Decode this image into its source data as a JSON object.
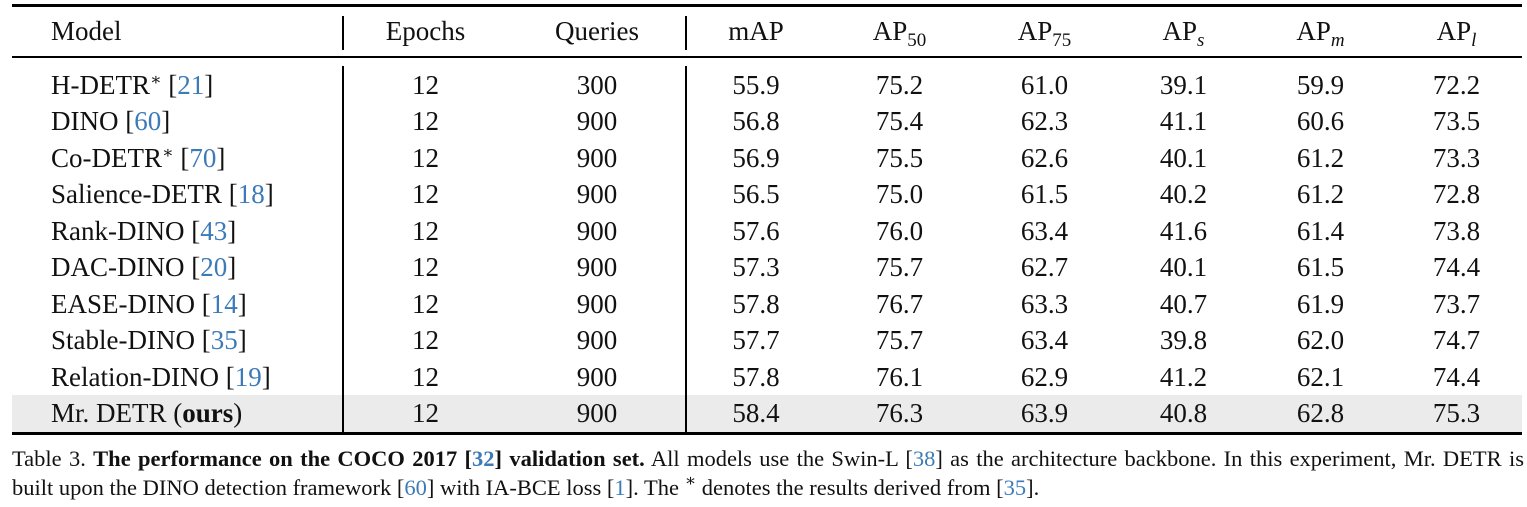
{
  "table": {
    "headers": {
      "model": "Model",
      "epochs": "Epochs",
      "queries": "Queries",
      "map": "mAP",
      "ap50": {
        "base": "AP",
        "sub": "50"
      },
      "ap75": {
        "base": "AP",
        "sub": "75"
      },
      "aps": {
        "base": "AP",
        "sub": "s"
      },
      "apm": {
        "base": "AP",
        "sub": "m"
      },
      "apl": {
        "base": "AP",
        "sub": "l"
      }
    },
    "rows": [
      {
        "name": "H-DETR",
        "star": "∗",
        "ref": "21",
        "epochs": "12",
        "queries": "300",
        "map": "55.9",
        "ap50": "75.2",
        "ap75": "61.0",
        "aps": "39.1",
        "apm": "59.9",
        "apl": "72.2"
      },
      {
        "name": "DINO",
        "star": "",
        "ref": "60",
        "epochs": "12",
        "queries": "900",
        "map": "56.8",
        "ap50": "75.4",
        "ap75": "62.3",
        "aps": "41.1",
        "apm": "60.6",
        "apl": "73.5"
      },
      {
        "name": "Co-DETR",
        "star": "∗",
        "ref": "70",
        "epochs": "12",
        "queries": "900",
        "map": "56.9",
        "ap50": "75.5",
        "ap75": "62.6",
        "aps": "40.1",
        "apm": "61.2",
        "apl": "73.3"
      },
      {
        "name": "Salience-DETR",
        "star": "",
        "ref": "18",
        "epochs": "12",
        "queries": "900",
        "map": "56.5",
        "ap50": "75.0",
        "ap75": "61.5",
        "aps": "40.2",
        "apm": "61.2",
        "apl": "72.8"
      },
      {
        "name": "Rank-DINO",
        "star": "",
        "ref": "43",
        "epochs": "12",
        "queries": "900",
        "map": "57.6",
        "ap50": "76.0",
        "ap75": "63.4",
        "aps": "41.6",
        "apm": "61.4",
        "apl": "73.8"
      },
      {
        "name": "DAC-DINO",
        "star": "",
        "ref": "20",
        "epochs": "12",
        "queries": "900",
        "map": "57.3",
        "ap50": "75.7",
        "ap75": "62.7",
        "aps": "40.1",
        "apm": "61.5",
        "apl": "74.4"
      },
      {
        "name": "EASE-DINO",
        "star": "",
        "ref": "14",
        "epochs": "12",
        "queries": "900",
        "map": "57.8",
        "ap50": "76.7",
        "ap75": "63.3",
        "aps": "40.7",
        "apm": "61.9",
        "apl": "73.7"
      },
      {
        "name": "Stable-DINO",
        "star": "",
        "ref": "35",
        "epochs": "12",
        "queries": "900",
        "map": "57.7",
        "ap50": "75.7",
        "ap75": "63.4",
        "aps": "39.8",
        "apm": "62.0",
        "apl": "74.7"
      },
      {
        "name": "Relation-DINO",
        "star": "",
        "ref": "19",
        "epochs": "12",
        "queries": "900",
        "map": "57.8",
        "ap50": "76.1",
        "ap75": "62.9",
        "aps": "41.2",
        "apm": "62.1",
        "apl": "74.4"
      }
    ],
    "ours": {
      "name_prefix": "Mr. DETR (",
      "name_bold": "ours",
      "name_suffix": ")",
      "epochs": "12",
      "queries": "900",
      "map": "58.4",
      "ap50": "76.3",
      "ap75": "63.9",
      "aps": "40.8",
      "apm": "62.8",
      "apl": "75.3"
    }
  },
  "caption": {
    "label": "Table 3.",
    "title_a": "The performance on the COCO 2017 [",
    "title_ref": "32",
    "title_b": "] validation set.",
    "t1": " All models use the Swin-L [",
    "r1": "38",
    "t2": "] as the architecture backbone. In this experiment, Mr. DETR is built upon the DINO detection framework [",
    "r2": "60",
    "t3": "] with IA-BCE loss [",
    "r3": "1",
    "t4": "]. The ",
    "star": "∗",
    "t5": " denotes the results derived from [",
    "r4": "35",
    "t6": "]."
  }
}
